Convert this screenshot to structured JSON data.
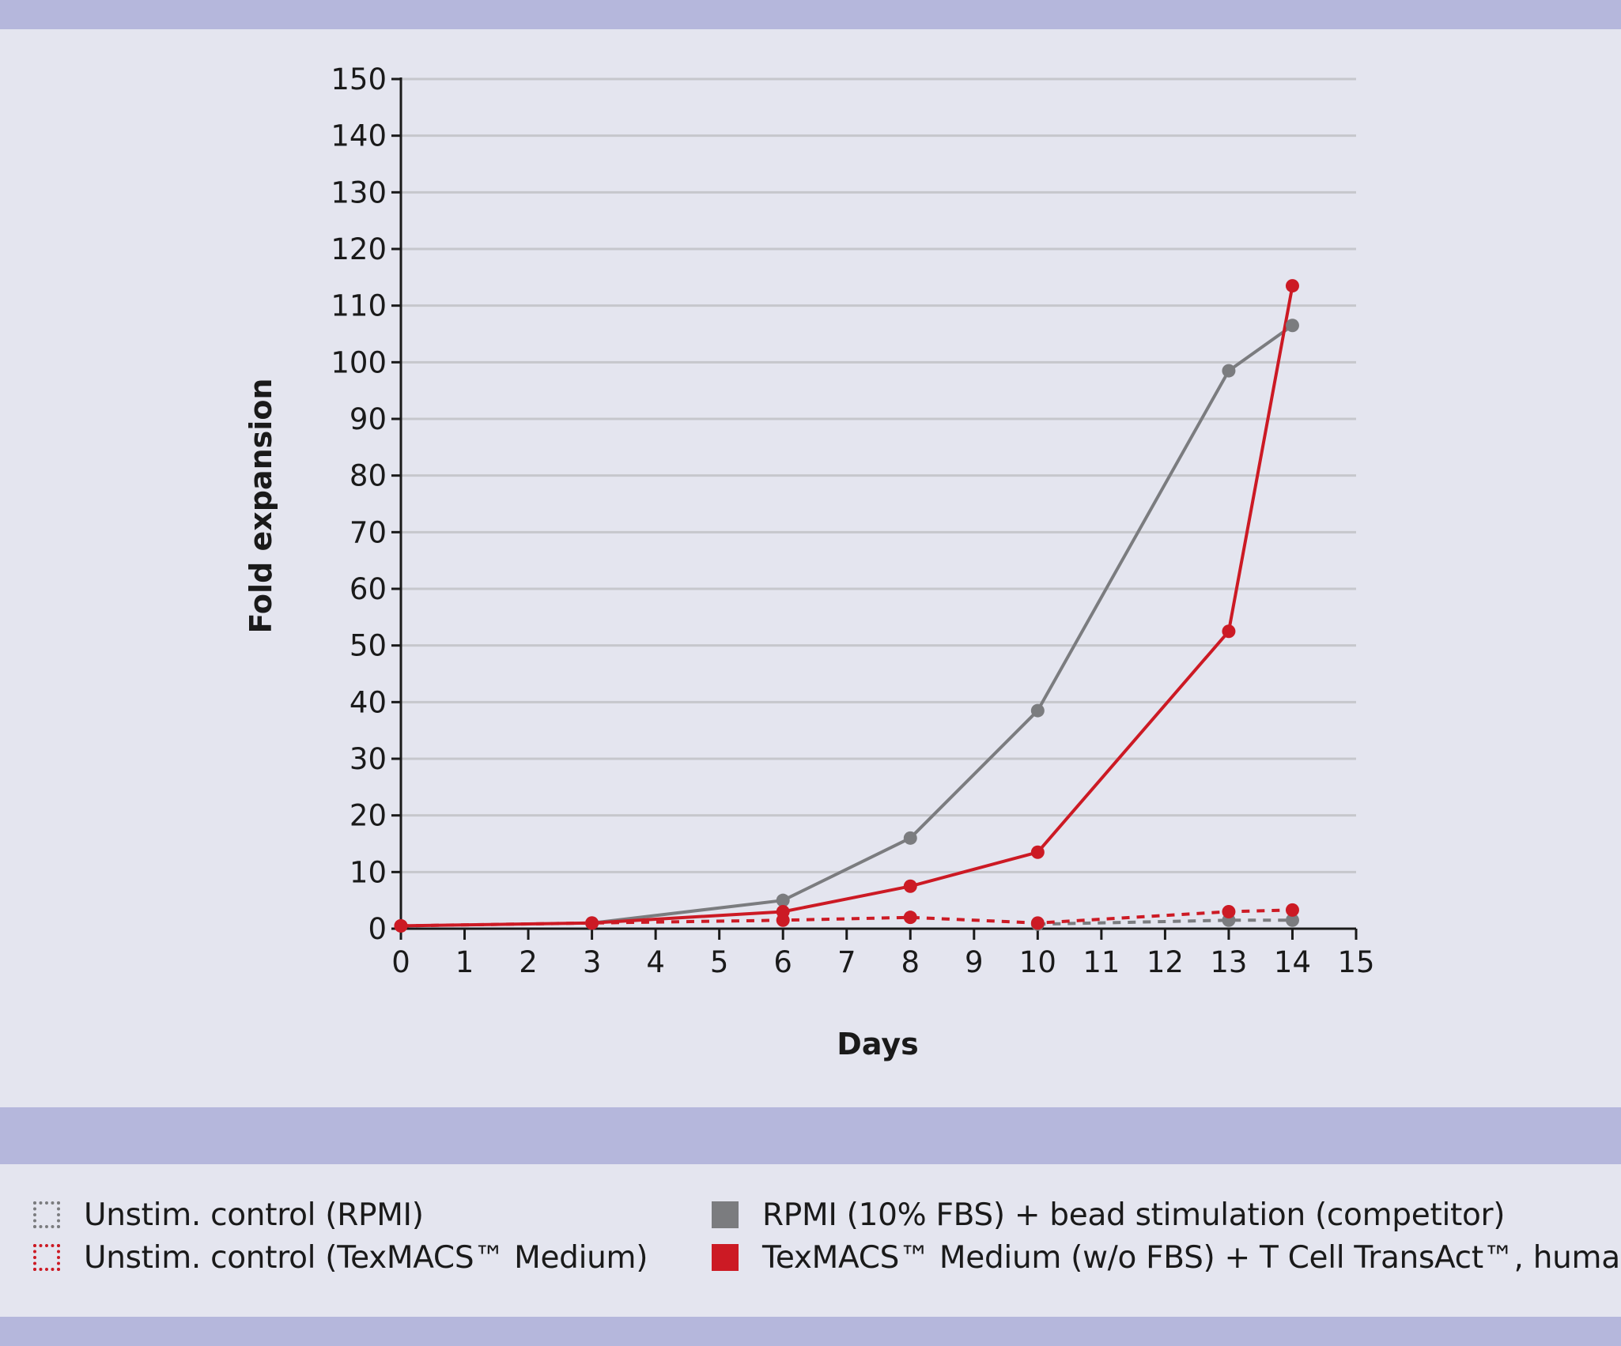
{
  "colors": {
    "background": "#e4e5ef",
    "band": "#b5b7dc",
    "gray_series": "#7b7c7f",
    "red_series": "#cc1a24",
    "gridline": "#c6c7cc",
    "axis": "#1a1a1a"
  },
  "chart_data": {
    "type": "line",
    "xlabel": "Days",
    "ylabel": "Fold expansion",
    "xlim": [
      0,
      15
    ],
    "ylim": [
      0,
      150
    ],
    "x_ticks": [
      "0",
      "1",
      "2",
      "3",
      "4",
      "5",
      "6",
      "7",
      "8",
      "9",
      "10",
      "11",
      "12",
      "13",
      "14",
      "15"
    ],
    "y_ticks": [
      "0",
      "10",
      "20",
      "30",
      "40",
      "50",
      "60",
      "70",
      "80",
      "90",
      "100",
      "110",
      "120",
      "130",
      "140",
      "150"
    ],
    "grid": true,
    "series": [
      {
        "name": "RPMI (10% FBS) + bead stimulation (competitor)",
        "color": "#7b7c7f",
        "style": "solid",
        "x": [
          3,
          6,
          8,
          10,
          13,
          14
        ],
        "values": [
          1,
          5,
          16,
          38.5,
          98.5,
          106.5
        ]
      },
      {
        "name": "TexMACS™ Medium (w/o FBS) + T Cell TransAct™, human",
        "color": "#cc1a24",
        "style": "solid",
        "x": [
          0,
          3,
          6,
          8,
          10,
          13,
          14
        ],
        "values": [
          0.5,
          1,
          3,
          7.5,
          13.5,
          52.5,
          113.5
        ]
      },
      {
        "name": "Unstim. control (RPMI)",
        "color": "#7b7c7f",
        "style": "dashed",
        "x": [
          10,
          13,
          14
        ],
        "values": [
          0.8,
          1.5,
          1.5
        ]
      },
      {
        "name": "Unstim. control (TexMACS™ Medium)",
        "color": "#cc1a24",
        "style": "dashed",
        "x": [
          0,
          3,
          6,
          8,
          10,
          13,
          14
        ],
        "values": [
          0.5,
          1,
          1.5,
          2,
          1,
          3,
          3.3
        ]
      }
    ]
  },
  "legend": {
    "left": [
      {
        "label": "Unstim. control (RPMI)",
        "color": "#7b7c7f",
        "style": "dashed"
      },
      {
        "label": "Unstim. control (TexMACS™ Medium)",
        "color": "#cc1a24",
        "style": "dashed"
      }
    ],
    "right": [
      {
        "label": "RPMI (10% FBS) + bead stimulation (competitor)",
        "color": "#7b7c7f",
        "style": "solid"
      },
      {
        "label": "TexMACS™ Medium (w/o FBS) + T Cell TransAct™, human",
        "color": "#cc1a24",
        "style": "solid"
      }
    ]
  }
}
